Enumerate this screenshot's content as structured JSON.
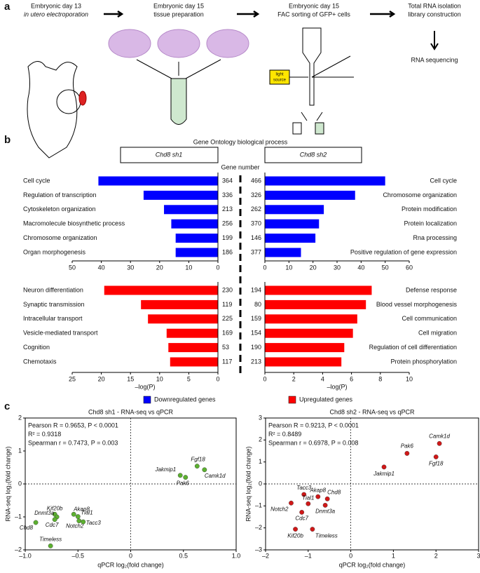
{
  "panel_a": {
    "label": "a",
    "steps": [
      {
        "lines": [
          "Embryonic day 13",
          "in utero electroporation"
        ]
      },
      {
        "lines": [
          "Embryonic day 15",
          "tissue preparation"
        ]
      },
      {
        "lines": [
          "Embryonic day 15",
          "FAC sorting of GFP+ cells"
        ]
      },
      {
        "lines": [
          "Total RNA isolation",
          "library construction"
        ]
      }
    ],
    "final_step": "RNA sequencing",
    "light_source": [
      "light",
      "source"
    ]
  },
  "panel_b": {
    "label": "b",
    "title": "Gene Ontology biological process",
    "center_label": "Gene number",
    "legend": [
      {
        "name": "Downregulated genes",
        "color": "#0000ff"
      },
      {
        "name": "Upregulated genes",
        "color": "#ff0000"
      }
    ]
  },
  "panel_c": {
    "label": "c"
  },
  "chart_data": [
    {
      "type": "bar",
      "orientation": "horizontal",
      "header": "Chd8 sh1",
      "categories": [
        "Cell cycle",
        "Regulation of transcription",
        "Cytoskeleton organization",
        "Macromolecule biosynthetic process",
        "Chromosome organization",
        "Organ morphogenesis"
      ],
      "values": [
        41,
        25.5,
        18.5,
        16,
        14.5,
        14.5
      ],
      "gene_numbers": [
        364,
        336,
        213,
        256,
        199,
        186
      ],
      "color": "#0000ff",
      "xlim": [
        50,
        0
      ],
      "xticks": [
        50,
        40,
        30,
        20,
        10,
        0
      ]
    },
    {
      "type": "bar",
      "orientation": "horizontal",
      "header": "Chd8 sh2",
      "categories": [
        "Cell cycle",
        "Chromosome organization",
        "Protein modification",
        "Protein localization",
        "Rna processing",
        "Positive regulation of gene expression"
      ],
      "values": [
        50,
        37.5,
        24.5,
        22.5,
        21,
        15
      ],
      "gene_numbers": [
        466,
        326,
        262,
        370,
        146,
        377
      ],
      "color": "#0000ff",
      "xlim": [
        0,
        60
      ],
      "xticks": [
        0,
        10,
        20,
        30,
        40,
        50,
        60
      ]
    },
    {
      "type": "bar",
      "orientation": "horizontal",
      "categories": [
        "Neuron differentiation",
        "Synaptic transmission",
        "Intracellular transport",
        "Vesicle-mediated transport",
        "Cognition",
        "Chemotaxis"
      ],
      "values": [
        19.5,
        13.2,
        12,
        8.8,
        8.5,
        8.2
      ],
      "gene_numbers": [
        230,
        119,
        225,
        169,
        53,
        117
      ],
      "color": "#ff0000",
      "xlim": [
        25,
        0
      ],
      "xticks": [
        25,
        20,
        15,
        10,
        5,
        0
      ],
      "xlabel": "–log(P)"
    },
    {
      "type": "bar",
      "orientation": "horizontal",
      "categories": [
        "Defense response",
        "Blood vessel morphogenesis",
        "Cell communication",
        "Cell migration",
        "Regulation of cell differentiation",
        "Protein phosphorylation"
      ],
      "values": [
        7.4,
        7.0,
        6.4,
        6.1,
        5.5,
        5.3
      ],
      "gene_numbers": [
        194,
        80,
        159,
        154,
        190,
        213
      ],
      "color": "#ff0000",
      "xlim": [
        0,
        10
      ],
      "xticks": [
        0,
        2,
        4,
        6,
        8,
        10
      ],
      "xlabel": "–log(P)"
    },
    {
      "type": "scatter",
      "title": "Chd8 sh1 - RNA-seq vs qPCR",
      "stats": [
        "Pearson R = 0.9653, P < 0.0001",
        "R² = 0.9318",
        "Spearman r = 0.7473, P = 0.003"
      ],
      "xlabel": "qPCR log₂(fold change)",
      "ylabel": "RNA-seq log₂(fold change)",
      "color": "#5cb030",
      "xlim": [
        -1,
        1
      ],
      "ylim": [
        -2,
        2
      ],
      "xticks": [
        {
          "value": -1,
          "label": "–1.0"
        },
        {
          "value": -0.5,
          "label": "–0.5"
        },
        0,
        0.5,
        {
          "value": 1,
          "label": "1.0"
        }
      ],
      "yticks": [
        2,
        1,
        0,
        {
          "value": -1,
          "label": "–1"
        },
        {
          "value": -2,
          "label": "–2"
        }
      ],
      "points": [
        {
          "label": "Fgf18",
          "x": 0.63,
          "y": 0.54
        },
        {
          "label": "Camk1d",
          "x": 0.7,
          "y": 0.43
        },
        {
          "label": "Jakmip1",
          "x": 0.47,
          "y": 0.26
        },
        {
          "label": "Pak6",
          "x": 0.52,
          "y": 0.2
        },
        {
          "label": "Kif20b",
          "x": -0.72,
          "y": -0.92
        },
        {
          "label": "Dnmt3a",
          "x": -0.7,
          "y": -1.0
        },
        {
          "label": "Akap8",
          "x": -0.54,
          "y": -0.92
        },
        {
          "label": "Tial1",
          "x": -0.5,
          "y": -0.99
        },
        {
          "label": "Chd8",
          "x": -0.9,
          "y": -1.17
        },
        {
          "label": "Cdc7",
          "x": -0.72,
          "y": -1.08
        },
        {
          "label": "Notch2",
          "x": -0.49,
          "y": -1.12
        },
        {
          "label": "Tacc3",
          "x": -0.45,
          "y": -1.15
        },
        {
          "label": "Timeless",
          "x": -0.76,
          "y": -1.88
        }
      ]
    },
    {
      "type": "scatter",
      "title": "Chd8 sh2 - RNA-seq vs qPCR",
      "stats": [
        "Pearson R = 0.9213, P < 0.0001",
        "R² = 0.8489",
        "Spearman r = 0.6978, P = 0.008"
      ],
      "xlabel": "qPCR log₂(fold change)",
      "ylabel": "RNA-seq log₂(fold change)",
      "color": "#d01818",
      "xlim": [
        -2,
        3
      ],
      "ylim": [
        -3,
        3
      ],
      "xticks": [
        {
          "value": -2,
          "label": "–2"
        },
        {
          "value": -1,
          "label": "–1"
        },
        0,
        1,
        2,
        3
      ],
      "yticks": [
        3,
        2,
        1,
        0,
        {
          "value": -1,
          "label": "–1"
        },
        {
          "value": -2,
          "label": "–2"
        },
        {
          "value": -3,
          "label": "–3"
        }
      ],
      "points": [
        {
          "label": "Camk1d",
          "x": 2.08,
          "y": 1.84
        },
        {
          "label": "Pak6",
          "x": 1.32,
          "y": 1.39
        },
        {
          "label": "Fgf18",
          "x": 2.0,
          "y": 1.23
        },
        {
          "label": "Jakmip1",
          "x": 0.78,
          "y": 0.77
        },
        {
          "label": "Tacc3",
          "x": -1.1,
          "y": -0.48
        },
        {
          "label": "Akap8",
          "x": -0.77,
          "y": -0.58
        },
        {
          "label": "Chd8",
          "x": -0.55,
          "y": -0.68
        },
        {
          "label": "Tial1",
          "x": -1.0,
          "y": -0.9
        },
        {
          "label": "Dnmt3a",
          "x": -0.6,
          "y": -0.97
        },
        {
          "label": "Notch2",
          "x": -1.4,
          "y": -0.87
        },
        {
          "label": "Cdc7",
          "x": -1.15,
          "y": -1.29
        },
        {
          "label": "Kif20b",
          "x": -1.3,
          "y": -2.06
        },
        {
          "label": "Timeless",
          "x": -0.9,
          "y": -2.06
        }
      ]
    }
  ]
}
